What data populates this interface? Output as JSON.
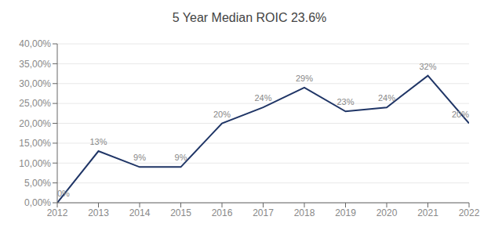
{
  "chart_data": {
    "type": "line",
    "title": "5 Year Median ROIC 23.6%",
    "x": [
      2012,
      2013,
      2014,
      2015,
      2016,
      2017,
      2018,
      2019,
      2020,
      2021,
      2022
    ],
    "values": [
      0.0,
      0.13,
      0.09,
      0.09,
      0.2,
      0.24,
      0.29,
      0.23,
      0.24,
      0.32,
      0.2
    ],
    "value_labels": [
      "0%",
      "13%",
      "9%",
      "9%",
      "20%",
      "24%",
      "29%",
      "23%",
      "24%",
      "32%",
      "20%"
    ],
    "data_labels": true,
    "color": "#1F3566",
    "xlim": [
      2012,
      2022
    ],
    "xticks": [
      2012,
      2013,
      2014,
      2015,
      2016,
      2017,
      2018,
      2019,
      2020,
      2021,
      2022
    ],
    "ylim": [
      0,
      0.4
    ],
    "yticks": [
      {
        "value": 0.0,
        "label": "0,00%"
      },
      {
        "value": 0.05,
        "label": "5,00%"
      },
      {
        "value": 0.1,
        "label": "10,00%"
      },
      {
        "value": 0.15,
        "label": "15,00%"
      },
      {
        "value": 0.2,
        "label": "20,00%"
      },
      {
        "value": 0.25,
        "label": "25,00%"
      },
      {
        "value": 0.3,
        "label": "30,00%"
      },
      {
        "value": 0.35,
        "label": "35,00%"
      },
      {
        "value": 0.4,
        "label": "40,00%"
      }
    ],
    "grid": true
  }
}
